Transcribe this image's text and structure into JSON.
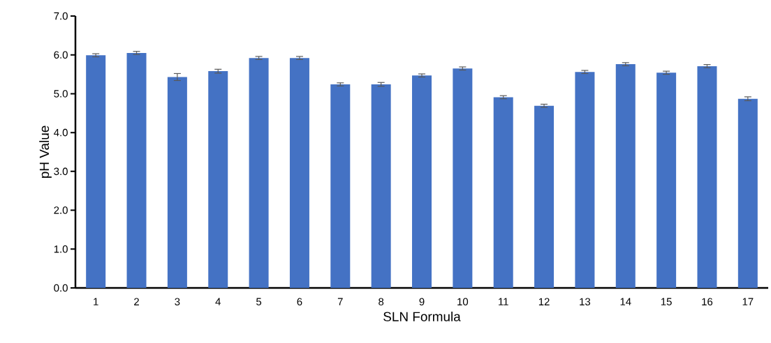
{
  "chart_data": {
    "type": "bar",
    "xlabel": "SLN Formula",
    "ylabel": "pH Value",
    "categories": [
      "1",
      "2",
      "3",
      "4",
      "5",
      "6",
      "7",
      "8",
      "9",
      "10",
      "11",
      "12",
      "13",
      "14",
      "15",
      "16",
      "17"
    ],
    "values": [
      5.99,
      6.05,
      5.43,
      5.58,
      5.92,
      5.92,
      5.24,
      5.24,
      5.47,
      5.65,
      4.91,
      4.69,
      5.56,
      5.76,
      5.54,
      5.71,
      4.87
    ],
    "errors": [
      0.04,
      0.04,
      0.09,
      0.05,
      0.04,
      0.04,
      0.04,
      0.05,
      0.04,
      0.04,
      0.04,
      0.04,
      0.04,
      0.04,
      0.04,
      0.04,
      0.05
    ],
    "color": "#4472c4",
    "ylim": [
      0,
      7
    ],
    "yticks": [
      {
        "value": 0,
        "label": "0.0"
      },
      {
        "value": 1,
        "label": "1.0"
      },
      {
        "value": 2,
        "label": "2.0"
      },
      {
        "value": 3,
        "label": "3.0"
      },
      {
        "value": 4,
        "label": "4.0"
      },
      {
        "value": 5,
        "label": "5.0"
      },
      {
        "value": 6,
        "label": "6.0"
      },
      {
        "value": 7,
        "label": "7.0"
      }
    ],
    "grid": false
  }
}
